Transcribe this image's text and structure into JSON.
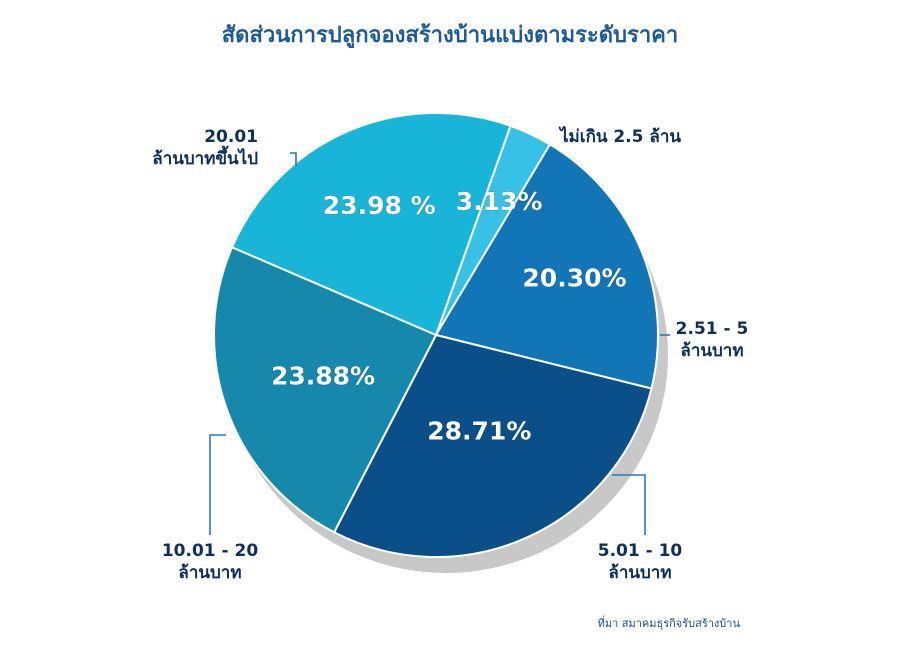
{
  "chart_data": {
    "type": "pie",
    "title": "สัดส่วนการปลูกจองสร้างบ้านแบ่งตามระดับราคา",
    "source": "ที่มา สมาคมธุรกิจรับสร้างบ้าน",
    "slices": [
      {
        "label_lines": [
          "ไม่เกิน 2.5 ล้าน"
        ],
        "value": 3.13,
        "display": "3.13%",
        "color": "#38c1e6"
      },
      {
        "label_lines": [
          "2.51 - 5",
          "ล้านบาท"
        ],
        "value": 20.3,
        "display": "20.30%",
        "color": "#1275b6"
      },
      {
        "label_lines": [
          "5.01 - 10",
          "ล้านบาท"
        ],
        "value": 28.71,
        "display": "28.71%",
        "color": "#0a4f87"
      },
      {
        "label_lines": [
          "10.01 - 20",
          "ล้านบาท"
        ],
        "value": 23.88,
        "display": "23.88%",
        "color": "#1688ab"
      },
      {
        "label_lines": [
          "20.01",
          "ล้านบาทขึ้นไป"
        ],
        "value": 23.98,
        "display": "23.98 %",
        "color": "#18b5d8"
      }
    ]
  }
}
